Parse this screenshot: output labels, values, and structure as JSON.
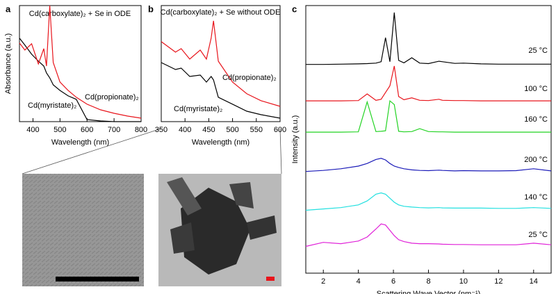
{
  "chart_data": [
    {
      "type": "line",
      "panel": "a",
      "title": "Cd(carboxylate)₂ + Se in ODE",
      "x_label": "Wavelength (nm)",
      "y_label": "Absorbance (a.u.)",
      "x": [
        350,
        370,
        395,
        420,
        440,
        450,
        462,
        475,
        500,
        530,
        560,
        600,
        650,
        700,
        750,
        800
      ],
      "xlim": [
        350,
        800
      ],
      "ylim": [
        0,
        100
      ],
      "xticks": [
        400,
        500,
        600,
        700,
        800
      ],
      "series": [
        {
          "name": "Cd(myristate)₂",
          "color": "#000000",
          "values": [
            71.9,
            65.9,
            58.1,
            52.1,
            47.9,
            41.9,
            37.7,
            31.7,
            26.9,
            22.2,
            19.2,
            1.8,
            0.6,
            0,
            0,
            0
          ]
        },
        {
          "name": "Cd(propionate)₂",
          "color": "#e8141b",
          "values": [
            67.7,
            61.7,
            67.1,
            49.7,
            62.9,
            47.9,
            100,
            50.9,
            34.1,
            26.9,
            21,
            15,
            10.2,
            7.2,
            4.8,
            3
          ]
        }
      ]
    },
    {
      "type": "line",
      "panel": "b",
      "title": "Cd(carboxylate)₂ + Se without ODE",
      "x_label": "Wavelength (nm)",
      "x": [
        350,
        380,
        392,
        410,
        432,
        445,
        455,
        460,
        470,
        500,
        530,
        560,
        600
      ],
      "xlim": [
        350,
        600
      ],
      "ylim": [
        0,
        100
      ],
      "xticks": [
        350,
        400,
        450,
        500,
        550,
        600
      ],
      "series": [
        {
          "name": "Cd(myristate)₂",
          "color": "#000000",
          "values": [
            50.9,
            44.9,
            46.1,
            38.9,
            40.1,
            34.1,
            38.9,
            35.9,
            21,
            15,
            9,
            6,
            3
          ]
        },
        {
          "name": "Cd(propionate)₂",
          "color": "#e8141b",
          "values": [
            68.9,
            59.9,
            62.9,
            53.9,
            61.7,
            53.9,
            71.9,
            86.8,
            52.1,
            34.1,
            24,
            18,
            13.2
          ]
        }
      ]
    },
    {
      "type": "line",
      "panel": "c",
      "x_label": "Scattering Wave Vector (nm⁻¹)",
      "y_label": "Intensity (a.u.)",
      "x": [
        1,
        2,
        3,
        4,
        4.5,
        5,
        5.3,
        5.55,
        5.8,
        6.05,
        6.3,
        6.6,
        7.05,
        7.5,
        8,
        8.6,
        8.8,
        9.5,
        10,
        11,
        12,
        13,
        14,
        15
      ],
      "xlim": [
        1,
        15
      ],
      "ylim": [
        0,
        100
      ],
      "xticks": [
        2,
        4,
        6,
        8,
        10,
        12,
        14
      ],
      "series": [
        {
          "name": "25 °C",
          "color": "#000000",
          "values": [
            78,
            78,
            78.1,
            78.2,
            78.3,
            78.5,
            79,
            88,
            79,
            97.4,
            79.5,
            78.6,
            80.5,
            78.5,
            78.3,
            79.2,
            79,
            78.4,
            78.5,
            78.2,
            78.1,
            78.1,
            78.1,
            78.1
          ]
        },
        {
          "name": "100 °C",
          "color": "#e8141b",
          "values": [
            64.4,
            64.4,
            64.4,
            64.5,
            67,
            64.6,
            65,
            67.5,
            70,
            77.4,
            66,
            64.8,
            65.5,
            64.6,
            64.5,
            65,
            64.6,
            64.5,
            64.5,
            64.4,
            64.4,
            64.4,
            64.4,
            64.4
          ]
        },
        {
          "name": "160 °C",
          "color": "#22d322",
          "values": [
            52.7,
            52.7,
            52.7,
            52.8,
            64,
            52.9,
            53,
            53.2,
            64.4,
            63,
            53,
            52.8,
            52.9,
            54,
            52.9,
            52.8,
            52.8,
            52.7,
            52.7,
            52.7,
            52.7,
            52.7,
            52.7,
            52.7
          ]
        },
        {
          "name": "200 °C",
          "color": "#1a1ab8",
          "values": [
            38,
            38.4,
            39,
            40,
            41,
            42.5,
            42.9,
            42.3,
            41,
            40,
            39.5,
            39,
            38.6,
            38.4,
            38.3,
            38.5,
            38.4,
            38.2,
            38.3,
            38.2,
            38.2,
            38.3,
            39,
            38.2
          ]
        },
        {
          "name": "140 °C",
          "color": "#22e0e0",
          "values": [
            23.5,
            24,
            24.5,
            25.5,
            27,
            29.5,
            30,
            29.5,
            28,
            26.5,
            25.5,
            25,
            24.7,
            24.5,
            24.4,
            24.5,
            24.4,
            24.3,
            24.3,
            24.3,
            24.2,
            24.2,
            24.5,
            24.2
          ]
        },
        {
          "name": "25 °C",
          "color": "#e020d8",
          "values": [
            10,
            11.5,
            11,
            12,
            13.5,
            16.5,
            18.4,
            18,
            16,
            14,
            12.5,
            11.8,
            11.2,
            11,
            11,
            10.9,
            10.8,
            10.7,
            10.7,
            10.6,
            10.6,
            10.6,
            11.2,
            10.6
          ]
        }
      ]
    }
  ]
}
